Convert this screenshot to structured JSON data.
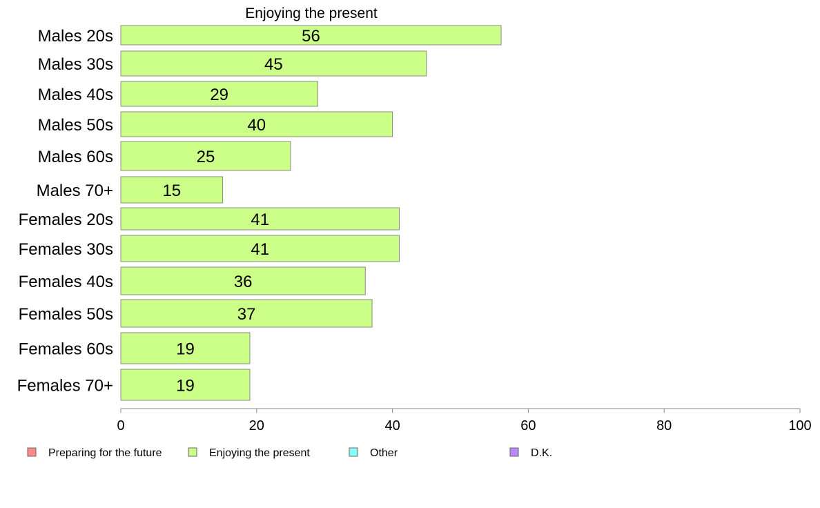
{
  "chart_data": {
    "type": "bar",
    "orientation": "horizontal",
    "title": "Enjoying the present",
    "xlabel": "",
    "ylabel": "",
    "xlim": [
      0,
      100
    ],
    "x_ticks": [
      0,
      20,
      40,
      60,
      80,
      100
    ],
    "grid": false,
    "categories": [
      "Males 20s",
      "Males 30s",
      "Males 40s",
      "Males 50s",
      "Males 60s",
      "Males 70+",
      "Females 20s",
      "Females 30s",
      "Females 40s",
      "Females 50s",
      "Females 60s",
      "Females 70+"
    ],
    "series": [
      {
        "name": "Enjoying the present",
        "color": "#CCFF88",
        "values": [
          56,
          45,
          29,
          40,
          25,
          15,
          41,
          41,
          36,
          37,
          19,
          19
        ]
      }
    ],
    "value_labels": [
      "56",
      "45",
      "29",
      "40",
      "25",
      "15",
      "41",
      "41",
      "36",
      "37",
      "19",
      "19"
    ],
    "legend": {
      "placement": "bottom",
      "items": [
        {
          "label": "Preparing for the future",
          "color": "#FF8888"
        },
        {
          "label": "Enjoying the present",
          "color": "#CCFF88"
        },
        {
          "label": "Other",
          "color": "#88FFFF"
        },
        {
          "label": "D.K.",
          "color": "#BB88FF"
        }
      ]
    }
  }
}
